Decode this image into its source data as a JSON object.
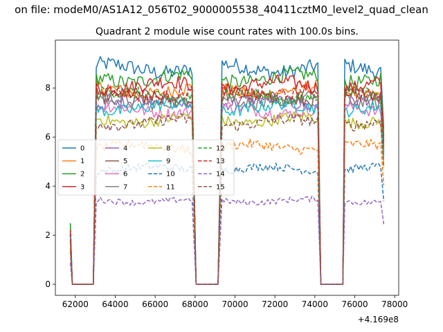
{
  "figure": {
    "suptitle": "on file: modeM0/AS1A12_056T02_9000005538_40411cztM0_level2_quad_clean",
    "title": "Quadrant 2 module wise count rates with 100.0s bins.",
    "x_offset_label": "+4.169e8"
  },
  "chart_data": {
    "type": "line",
    "title": "Quadrant 2 module wise count rates with 100.0s bins.",
    "xlabel": "",
    "ylabel": "",
    "xlim": [
      61000,
      78200
    ],
    "ylim": [
      -0.45,
      9.95
    ],
    "x_offset": 416900000,
    "xticks": [
      62000,
      64000,
      66000,
      68000,
      70000,
      72000,
      74000,
      76000,
      78000
    ],
    "xtick_labels": [
      "62000",
      "64000",
      "66000",
      "68000",
      "70000",
      "72000",
      "74000",
      "76000",
      "78000"
    ],
    "yticks": [
      0,
      2,
      4,
      6,
      8
    ],
    "ytick_labels": [
      "0",
      "2",
      "4",
      "6",
      "8"
    ],
    "grid": false,
    "legend": {
      "placement": "center-left",
      "ncol": 4
    },
    "segments": [
      {
        "zero_start": 61750,
        "rise_end": 61850,
        "zero_end": 62900,
        "on_start": 63050,
        "on_end": 67900,
        "fall_end": 68050
      },
      {
        "zero_start": 68050,
        "rise_end": 68050,
        "zero_end": 69150,
        "on_start": 69350,
        "on_end": 74150,
        "fall_end": 74300
      },
      {
        "zero_start": 74300,
        "rise_end": 74300,
        "zero_end": 75400,
        "on_start": 75500,
        "on_end": 77350,
        "fall_end": 77450
      }
    ],
    "series": [
      {
        "name": "0",
        "color": "#1f77b4",
        "dash": "solid",
        "level": 8.8
      },
      {
        "name": "1",
        "color": "#ff7f0e",
        "dash": "solid",
        "level": 7.9
      },
      {
        "name": "2",
        "color": "#2ca02c",
        "dash": "solid",
        "level": 8.4
      },
      {
        "name": "3",
        "color": "#d62728",
        "dash": "solid",
        "level": 8.1
      },
      {
        "name": "4",
        "color": "#9467bd",
        "dash": "solid",
        "level": 7.4
      },
      {
        "name": "5",
        "color": "#8c564b",
        "dash": "solid",
        "level": 7.6
      },
      {
        "name": "6",
        "color": "#e377c2",
        "dash": "solid",
        "level": 7.1
      },
      {
        "name": "7",
        "color": "#7f7f7f",
        "dash": "solid",
        "level": 7.5
      },
      {
        "name": "8",
        "color": "#bcbd22",
        "dash": "solid",
        "level": 6.7
      },
      {
        "name": "9",
        "color": "#17becf",
        "dash": "solid",
        "level": 7.2
      },
      {
        "name": "10",
        "color": "#1f77b4",
        "dash": "dashed",
        "level": 4.7
      },
      {
        "name": "11",
        "color": "#ff7f0e",
        "dash": "dashed",
        "level": 5.6
      },
      {
        "name": "12",
        "color": "#2ca02c",
        "dash": "dashed",
        "level": 7.7
      },
      {
        "name": "13",
        "color": "#d62728",
        "dash": "dashed",
        "level": 7.8
      },
      {
        "name": "14",
        "color": "#9467bd",
        "dash": "dashed",
        "level": 3.4
      },
      {
        "name": "15",
        "color": "#8c564b",
        "dash": "dashed",
        "level": 6.6
      }
    ]
  }
}
